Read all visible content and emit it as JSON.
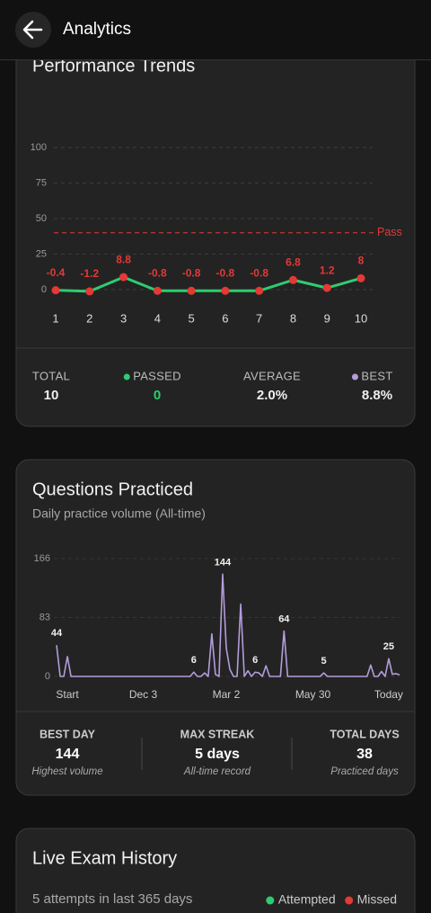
{
  "header": {
    "title": "Analytics"
  },
  "chart_data": [
    {
      "type": "line",
      "title": "Performance Trends",
      "categories": [
        "1",
        "2",
        "3",
        "4",
        "5",
        "6",
        "7",
        "8",
        "9",
        "10"
      ],
      "values": [
        -0.4,
        -1.2,
        8.8,
        -0.8,
        -0.8,
        -0.8,
        -0.8,
        6.8,
        1.2,
        8
      ],
      "color": "#2ecc71",
      "marker_color": "#e53935",
      "label_color": "#e53935",
      "ylim": [
        0,
        100
      ],
      "yticks": [
        0,
        25,
        50,
        75,
        100
      ],
      "grid": true,
      "reference_line": {
        "value": 40,
        "label": "Pass",
        "color": "#e53935"
      },
      "stats": [
        {
          "label": "TOTAL",
          "value": "10"
        },
        {
          "label": "PASSED",
          "value": "0",
          "marker": "#2ecc71",
          "value_color": "#2ecc71"
        },
        {
          "label": "AVERAGE",
          "value": "2.0%"
        },
        {
          "label": "BEST",
          "value": "8.8%",
          "marker": "#b39ddb"
        }
      ]
    },
    {
      "type": "line",
      "title": "Questions Practiced",
      "subtitle": "Daily practice volume (All-time)",
      "categories": [
        null,
        null,
        null,
        "Start",
        null,
        null,
        null,
        null,
        null,
        null,
        null,
        null,
        null,
        null,
        null,
        null,
        null,
        null,
        null,
        null,
        null,
        null,
        null,
        null,
        "Dec 3",
        null,
        null,
        null,
        null,
        null,
        null,
        null,
        null,
        null,
        null,
        null,
        null,
        null,
        null,
        null,
        null,
        null,
        null,
        null,
        null,
        null,
        null,
        "Mar 2",
        null,
        null,
        null,
        null,
        null,
        null,
        null,
        null,
        null,
        null,
        null,
        null,
        null,
        null,
        null,
        null,
        null,
        null,
        null,
        null,
        null,
        null,
        null,
        "May 30",
        null,
        null,
        null,
        null,
        null,
        null,
        null,
        null,
        null,
        null,
        null,
        null,
        null,
        null,
        null,
        null,
        null,
        null,
        null,
        null,
        "Today",
        null,
        null,
        null
      ],
      "values": [
        44,
        0,
        0,
        28,
        0,
        0,
        0,
        0,
        0,
        0,
        0,
        0,
        0,
        0,
        0,
        0,
        0,
        0,
        0,
        0,
        0,
        0,
        0,
        0,
        0,
        0,
        0,
        0,
        0,
        0,
        0,
        0,
        0,
        0,
        0,
        0,
        0,
        0,
        6,
        0,
        0,
        5,
        0,
        60,
        3,
        0,
        144,
        40,
        10,
        0,
        0,
        102,
        0,
        8,
        0,
        6,
        5,
        0,
        15,
        0,
        0,
        0,
        0,
        64,
        0,
        0,
        0,
        0,
        0,
        0,
        0,
        0,
        0,
        0,
        5,
        0,
        0,
        0,
        0,
        0,
        0,
        0,
        0,
        0,
        0,
        0,
        0,
        16,
        0,
        0,
        7,
        0,
        25,
        3,
        4,
        2
      ],
      "value_labels": [
        "44",
        null,
        null,
        null,
        null,
        null,
        null,
        null,
        null,
        null,
        null,
        null,
        null,
        null,
        null,
        null,
        null,
        null,
        null,
        null,
        null,
        null,
        null,
        null,
        null,
        null,
        null,
        null,
        null,
        null,
        null,
        null,
        null,
        null,
        null,
        null,
        null,
        null,
        "6",
        null,
        null,
        null,
        null,
        null,
        null,
        null,
        "144",
        null,
        null,
        null,
        null,
        null,
        null,
        null,
        null,
        "6",
        null,
        null,
        null,
        null,
        null,
        null,
        null,
        "64",
        null,
        null,
        null,
        null,
        null,
        null,
        null,
        null,
        null,
        null,
        "5",
        null,
        null,
        null,
        null,
        null,
        null,
        null,
        null,
        null,
        null,
        null,
        null,
        null,
        null,
        null,
        null,
        null,
        "25",
        null,
        null,
        null
      ],
      "color": "#b39ddb",
      "ylim": [
        0,
        166
      ],
      "yticks": [
        0,
        83,
        166
      ],
      "grid": true,
      "stats": [
        {
          "label": "BEST DAY",
          "value": "144",
          "note": "Highest volume"
        },
        {
          "label": "MAX STREAK",
          "value": "5 days",
          "note": "All-time record"
        },
        {
          "label": "TOTAL DAYS",
          "value": "38",
          "note": "Practiced days"
        }
      ]
    }
  ],
  "live_exam": {
    "title": "Live Exam History",
    "subtitle": "5 attempts in last 365 days",
    "legend": [
      {
        "name": "Attempted",
        "color": "#2ecc71"
      },
      {
        "name": "Missed",
        "color": "#e53935"
      }
    ]
  }
}
